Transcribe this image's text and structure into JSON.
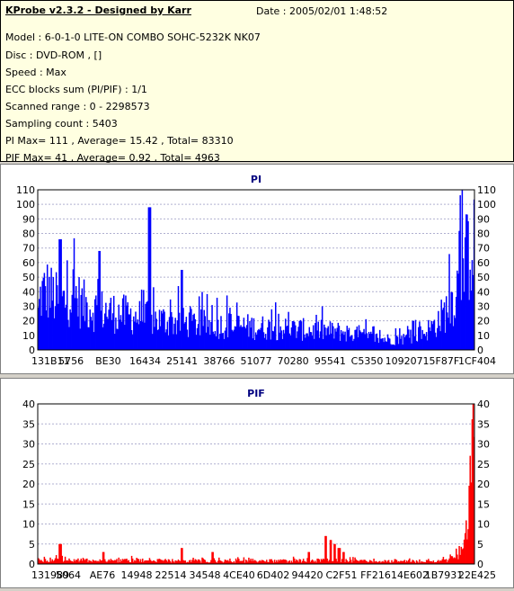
{
  "info": {
    "title": "KProbe v2.3.2 - Designed by Karr",
    "date": "Date : 2005/02/01 1:48:52",
    "lines": [
      "Model : 6-0-1-0 LITE-ON COMBO SOHC-5232K NK07",
      "Disc : DVD-ROM ,  []",
      "Speed : Max",
      "ECC blocks sum (PI/PIF) : 1/1",
      "Scanned range : 0 - 2298573",
      "Sampling count : 5403",
      "PI Max= 111 , Average= 15.42 , Total= 83310",
      "PIF Max= 41 , Average= 0.92 , Total= 4963"
    ]
  },
  "chart_data": [
    {
      "type": "bar",
      "title": "PI",
      "ylim": [
        0,
        110
      ],
      "yticks": [
        0,
        10,
        20,
        30,
        40,
        50,
        60,
        70,
        80,
        90,
        100,
        110
      ],
      "xtick_labels": [
        "131B11",
        "5756",
        "BE30",
        "16434",
        "25141",
        "38766",
        "51077",
        "70280",
        "95541",
        "C5350",
        "109207",
        "15F87F",
        "1CF404"
      ],
      "grid": true,
      "color": "#0000ff",
      "profile_x": [
        0,
        0.005,
        0.02,
        0.04,
        0.06,
        0.08,
        0.1,
        0.13,
        0.16,
        0.19,
        0.22,
        0.25,
        0.3,
        0.35,
        0.4,
        0.45,
        0.5,
        0.55,
        0.6,
        0.65,
        0.7,
        0.74,
        0.77,
        0.8,
        0.83,
        0.86,
        0.88,
        0.9,
        0.92,
        0.94,
        0.96,
        0.975,
        0.985,
        0.993,
        1.0
      ],
      "profile_y": [
        30,
        45,
        50,
        42,
        40,
        48,
        38,
        34,
        32,
        30,
        28,
        26,
        24,
        22,
        21,
        20,
        19,
        18,
        17,
        16,
        15,
        12,
        10,
        9,
        9,
        11,
        14,
        18,
        25,
        35,
        50,
        65,
        78,
        95,
        110
      ],
      "spikes": [
        [
          0.05,
          76
        ],
        [
          0.14,
          68
        ],
        [
          0.255,
          98
        ],
        [
          0.33,
          55
        ],
        [
          0.86,
          20
        ]
      ]
    },
    {
      "type": "bar",
      "title": "PIF",
      "ylim": [
        0,
        40
      ],
      "yticks": [
        0,
        5,
        10,
        15,
        20,
        25,
        30,
        35,
        40
      ],
      "xtick_labels": [
        "131989",
        "5064",
        "AE76",
        "14948",
        "22514",
        "34548",
        "4CE40",
        "6D402",
        "94420",
        "C2F51",
        "FF216",
        "14E602",
        "1B7931",
        "22E425"
      ],
      "grid": true,
      "color": "#ff0000",
      "profile_x": [
        0,
        0.05,
        0.1,
        0.2,
        0.3,
        0.4,
        0.5,
        0.6,
        0.7,
        0.8,
        0.9,
        0.94,
        0.96,
        0.975,
        0.985,
        0.993,
        1.0
      ],
      "profile_y": [
        1.2,
        1.4,
        1.2,
        1.1,
        1.0,
        0.9,
        0.9,
        1.0,
        1.1,
        0.8,
        0.8,
        1.2,
        2.5,
        6,
        15,
        25,
        35
      ],
      "spikes": [
        [
          0.05,
          5
        ],
        [
          0.15,
          3
        ],
        [
          0.33,
          4
        ],
        [
          0.4,
          3
        ],
        [
          0.66,
          7
        ],
        [
          0.67,
          6
        ],
        [
          0.68,
          5
        ],
        [
          0.69,
          4
        ],
        [
          0.7,
          3
        ],
        [
          0.62,
          3
        ]
      ]
    }
  ]
}
